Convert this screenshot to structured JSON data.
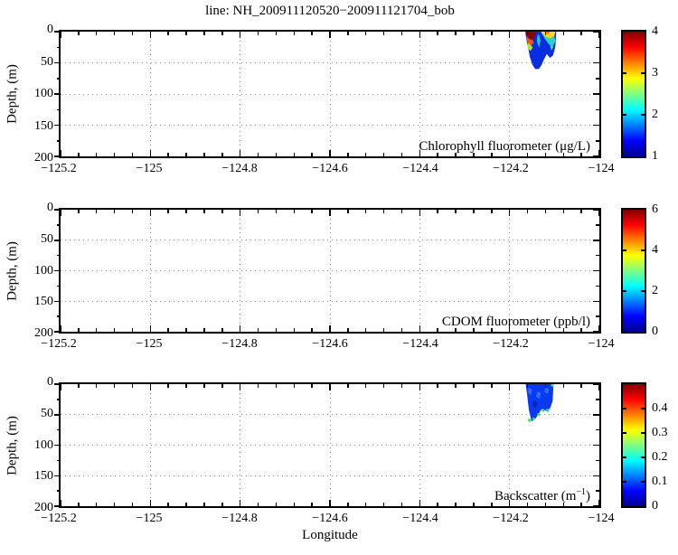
{
  "title": "line: NH_200911120520−200911121704_bob",
  "xlabel": "Longitude",
  "ylabel": "Depth, (m)",
  "axes": {
    "xlim": [
      -125.2,
      -124
    ],
    "x_major_step": 0.2,
    "x_minor_step": 0.04,
    "x_tick_labels": [
      "−125.2",
      "−125",
      "−124.8",
      "−124.6",
      "−124.4",
      "−124.2",
      "−124"
    ],
    "ylim": [
      0,
      200
    ],
    "y_major_step": 50,
    "y_minor_step": 25,
    "y_tick_labels": [
      "0",
      "50",
      "100",
      "150",
      "200"
    ],
    "grid": "dotted"
  },
  "colors": {
    "axis": "#000000",
    "grid": "#8a8a8a",
    "background": "#ffffff",
    "jet_stops": [
      "#00008F",
      "#0000FF",
      "#00FFFF",
      "#FFFF00",
      "#FF0000",
      "#7F0000"
    ]
  },
  "chart_data": [
    {
      "type": "heatmap",
      "panel": "chlorophyll",
      "annotation": {
        "prefix": "Chlorophyll fluorometer (μg/L)",
        "sup": "",
        "suffix": ""
      },
      "xlim": [
        -125.2,
        -124
      ],
      "ylim": [
        200,
        0
      ],
      "colorbar": {
        "range": [
          1,
          4
        ],
        "ticks": [
          1,
          2,
          3,
          4
        ],
        "tick_labels": [
          "1",
          "2",
          "3",
          "4"
        ]
      },
      "data_extent": {
        "lon": [
          -124.165,
          -124.096
        ],
        "depth": [
          0,
          60
        ]
      },
      "summary": "Small data swath near lon −124.16 to −124.10; surface values up to ~4 μg/L (dark red/yellow) in top 15 m, decreasing to ~1 μg/L (blue) below, reaching ~60 m depth",
      "patch": [
        {
          "color": "#0a2de0",
          "points": [
            [
              -124.165,
              0
            ],
            [
              -124.096,
              0
            ],
            [
              -124.098,
              24
            ],
            [
              -124.103,
              38
            ],
            [
              -124.11,
              42
            ],
            [
              -124.117,
              36
            ],
            [
              -124.123,
              44
            ],
            [
              -124.129,
              54
            ],
            [
              -124.135,
              60
            ],
            [
              -124.143,
              60
            ],
            [
              -124.149,
              53
            ],
            [
              -124.155,
              40
            ],
            [
              -124.159,
              24
            ],
            [
              -124.163,
              10
            ]
          ]
        },
        {
          "color": "#22c4e0",
          "points": [
            [
              -124.135,
              4
            ],
            [
              -124.131,
              14
            ],
            [
              -124.134,
              26
            ],
            [
              -124.139,
              16
            ],
            [
              -124.138,
              6
            ]
          ]
        },
        {
          "color": "#8c0000",
          "points": [
            [
              -124.164,
              0
            ],
            [
              -124.141,
              0
            ],
            [
              -124.143,
              7
            ],
            [
              -124.149,
              13
            ],
            [
              -124.156,
              12
            ],
            [
              -124.161,
              7
            ],
            [
              -124.163,
              3
            ]
          ]
        },
        {
          "color": "#f05a10",
          "points": [
            [
              -124.161,
              7
            ],
            [
              -124.156,
              12
            ],
            [
              -124.149,
              13
            ],
            [
              -124.146,
              18
            ],
            [
              -124.152,
              22
            ],
            [
              -124.159,
              18
            ],
            [
              -124.162,
              11
            ]
          ]
        },
        {
          "color": "#b8e03a",
          "points": [
            [
              -124.159,
              18
            ],
            [
              -124.152,
              22
            ],
            [
              -124.148,
              26
            ],
            [
              -124.154,
              31
            ],
            [
              -124.16,
              26
            ]
          ]
        },
        {
          "color": "#ffd813",
          "points": [
            [
              -124.13,
              0
            ],
            [
              -124.098,
              0
            ],
            [
              -124.1,
              7
            ],
            [
              -124.109,
              11
            ],
            [
              -124.119,
              9
            ],
            [
              -124.127,
              4
            ]
          ]
        },
        {
          "color": "#ff7300",
          "points": [
            [
              -124.121,
              0
            ],
            [
              -124.111,
              0
            ],
            [
              -124.113,
              4
            ],
            [
              -124.119,
              3
            ]
          ]
        },
        {
          "color": "#25d3cf",
          "points": [
            [
              -124.127,
              4
            ],
            [
              -124.119,
              9
            ],
            [
              -124.109,
              11
            ],
            [
              -124.1,
              7
            ],
            [
              -124.098,
              16
            ],
            [
              -124.104,
              24
            ],
            [
              -124.113,
              20
            ],
            [
              -124.121,
              12
            ]
          ]
        },
        {
          "color": "#54e87a",
          "points": [
            [
              -124.11,
              22
            ],
            [
              -124.102,
              24
            ],
            [
              -124.107,
              30
            ]
          ]
        }
      ]
    },
    {
      "type": "heatmap",
      "panel": "cdom",
      "annotation": {
        "prefix": "CDOM fluorometer (ppb/l)",
        "sup": "",
        "suffix": ""
      },
      "xlim": [
        -125.2,
        -124
      ],
      "ylim": [
        200,
        0
      ],
      "colorbar": {
        "range": [
          0,
          6
        ],
        "ticks": [
          0,
          2,
          4,
          6
        ],
        "tick_labels": [
          "0",
          "2",
          "4",
          "6"
        ]
      },
      "data_extent": null,
      "summary": "No data plotted in this panel",
      "patch": []
    },
    {
      "type": "heatmap",
      "panel": "backscatter",
      "annotation": {
        "prefix": "Backscatter (m",
        "sup": "−1",
        "suffix": ")"
      },
      "xlim": [
        -125.2,
        -124
      ],
      "ylim": [
        200,
        0
      ],
      "colorbar": {
        "range": [
          0,
          0.5
        ],
        "ticks": [
          0,
          0.1,
          0.2,
          0.3,
          0.4
        ],
        "tick_labels": [
          "0",
          "0.1",
          "0.2",
          "0.3",
          "0.4"
        ]
      },
      "data_extent": {
        "lon": [
          -124.164,
          -124.102
        ],
        "depth": [
          0,
          62
        ]
      },
      "summary": "Small data swath near lon −124.16 to −124.10; mostly low values ~0.05 (blue) with green/cyan flecks ~0.2 along the bottom edge (~45–62 m)",
      "patch": [
        {
          "color": "#0a3af0",
          "points": [
            [
              -124.164,
              0
            ],
            [
              -124.102,
              0
            ],
            [
              -124.104,
              28
            ],
            [
              -124.11,
              40
            ],
            [
              -124.12,
              43
            ],
            [
              -124.129,
              41
            ],
            [
              -124.136,
              50
            ],
            [
              -124.143,
              57
            ],
            [
              -124.151,
              61
            ],
            [
              -124.157,
              42
            ],
            [
              -124.161,
              16
            ]
          ]
        },
        {
          "color": "#2f6cff",
          "points": [
            [
              -124.158,
              6
            ],
            [
              -124.15,
              8
            ],
            [
              -124.152,
              18
            ],
            [
              -124.159,
              14
            ]
          ]
        },
        {
          "color": "#2f6cff",
          "points": [
            [
              -124.138,
              12
            ],
            [
              -124.13,
              14
            ],
            [
              -124.133,
              24
            ],
            [
              -124.141,
              20
            ]
          ]
        },
        {
          "color": "#2f6cff",
          "points": [
            [
              -124.12,
              6
            ],
            [
              -124.112,
              8
            ],
            [
              -124.115,
              16
            ],
            [
              -124.123,
              12
            ]
          ]
        },
        {
          "color": "#0626b8",
          "points": [
            [
              -124.146,
              26
            ],
            [
              -124.138,
              30
            ],
            [
              -124.142,
              40
            ],
            [
              -124.15,
              34
            ]
          ]
        },
        {
          "color": "#2bd8e8",
          "points": [
            [
              -124.108,
              0
            ],
            [
              -124.102,
              0
            ],
            [
              -124.103,
              5
            ],
            [
              -124.108,
              3
            ]
          ]
        },
        {
          "color": "#46e06a",
          "points": [
            [
              -124.158,
              56
            ],
            [
              -124.152,
              58
            ],
            [
              -124.154,
              63
            ],
            [
              -124.159,
              60
            ]
          ]
        },
        {
          "color": "#46e06a",
          "points": [
            [
              -124.148,
              54
            ],
            [
              -124.143,
              56
            ],
            [
              -124.145,
              60
            ],
            [
              -124.15,
              58
            ]
          ]
        },
        {
          "color": "#46e06a",
          "points": [
            [
              -124.137,
              47
            ],
            [
              -124.132,
              49
            ],
            [
              -124.134,
              53
            ],
            [
              -124.139,
              51
            ]
          ]
        },
        {
          "color": "#46e06a",
          "points": [
            [
              -124.127,
              40
            ],
            [
              -124.122,
              42
            ],
            [
              -124.124,
              46
            ],
            [
              -124.129,
              44
            ]
          ]
        },
        {
          "color": "#25d3cf",
          "points": [
            [
              -124.117,
              40
            ],
            [
              -124.111,
              42
            ],
            [
              -124.114,
              46
            ],
            [
              -124.119,
              44
            ]
          ]
        }
      ]
    }
  ]
}
